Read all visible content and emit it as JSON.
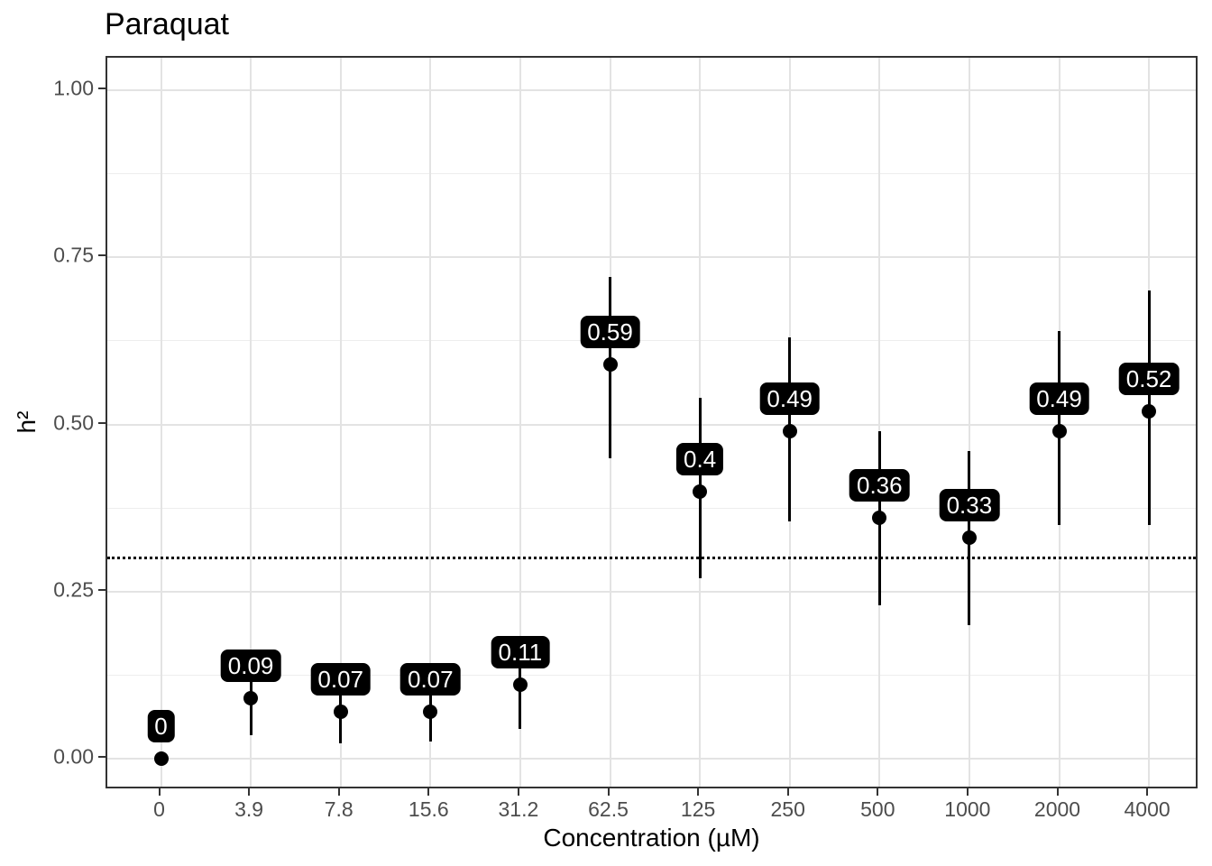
{
  "chart_data": {
    "type": "scatter",
    "title": "Paraquat",
    "xlabel": "Concentration (µM)",
    "ylabel": "h²",
    "categories": [
      "0",
      "3.9",
      "7.8",
      "15.6",
      "31.2",
      "62.5",
      "125",
      "250",
      "500",
      "1000",
      "2000",
      "4000"
    ],
    "values": [
      0,
      0.09,
      0.07,
      0.07,
      0.11,
      0.59,
      0.4,
      0.49,
      0.36,
      0.33,
      0.49,
      0.52
    ],
    "point_labels": [
      "0",
      "0.09",
      "0.07",
      "0.07",
      "0.11",
      "0.59",
      "0.4",
      "0.49",
      "0.36",
      "0.33",
      "0.49",
      "0.52"
    ],
    "ci_low": [
      0,
      0.035,
      0.023,
      0.026,
      0.045,
      0.45,
      0.27,
      0.355,
      0.23,
      0.2,
      0.35,
      0.35
    ],
    "ci_high": [
      0,
      0.15,
      0.12,
      0.12,
      0.175,
      0.72,
      0.54,
      0.63,
      0.49,
      0.46,
      0.64,
      0.7
    ],
    "reference_line": 0.3,
    "y_tick_labels": [
      "0.00",
      "0.25",
      "0.50",
      "0.75",
      "1.00"
    ],
    "y_tick_values": [
      0,
      0.25,
      0.5,
      0.75,
      1.0
    ],
    "y_minor_values": [
      0.125,
      0.375,
      0.625,
      0.875
    ],
    "ylim": [
      -0.05,
      1.05
    ],
    "grid": true,
    "legend": "none",
    "colors": {
      "point": "#000000",
      "label_bg": "#000000",
      "label_text": "#ffffff",
      "grid_major": "#e3e3e3",
      "grid_minor": "#ededed",
      "panel_border": "#333333",
      "tick_text": "#4d4d4d",
      "title_text": "#000000"
    }
  }
}
